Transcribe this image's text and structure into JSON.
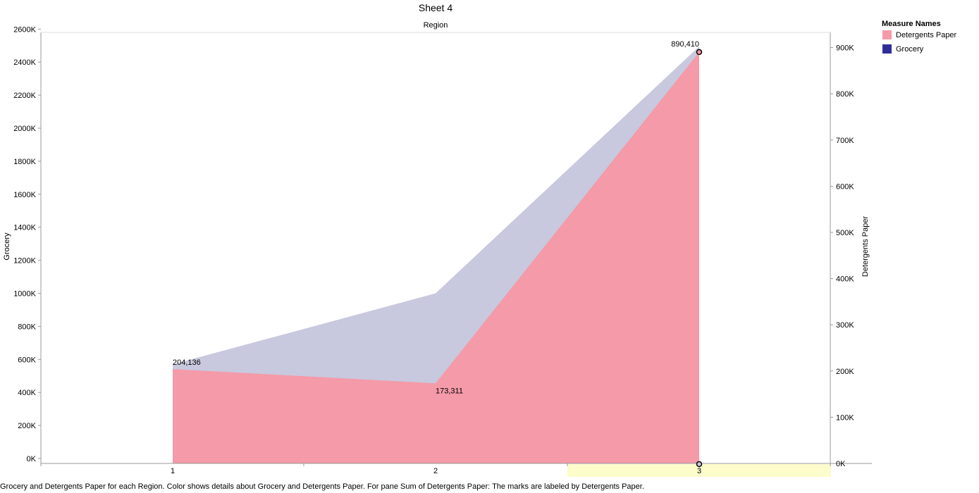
{
  "sheet_title": "Sheet 4",
  "caption": "Grocery and Detergents Paper for each Region.  Color shows details about Grocery and Detergents Paper.  For pane Sum of Detergents Paper:  The marks are labeled by Detergents Paper.",
  "legend": {
    "title": "Measure Names",
    "items": [
      {
        "label": "Detergents Paper",
        "color": "#f49aa8"
      },
      {
        "label": "Grocery",
        "color": "#2e2e9a"
      }
    ]
  },
  "colors": {
    "grocery_area": "#c8c8de",
    "detergents_area": "#f49aa8",
    "highlight": "#fdfccb",
    "axis": "#999999"
  },
  "chart_data": {
    "type": "area",
    "title": "Sheet 4",
    "xlabel": "Region",
    "categories": [
      "1",
      "2",
      "3"
    ],
    "highlighted_category": "3",
    "y_left": {
      "label": "Grocery",
      "ylim": [
        0,
        2600000
      ],
      "ticks": [
        {
          "value": 0,
          "label": "0K"
        },
        {
          "value": 200000,
          "label": "200K"
        },
        {
          "value": 400000,
          "label": "400K"
        },
        {
          "value": 600000,
          "label": "600K"
        },
        {
          "value": 800000,
          "label": "800K"
        },
        {
          "value": 1000000,
          "label": "1000K"
        },
        {
          "value": 1200000,
          "label": "1200K"
        },
        {
          "value": 1400000,
          "label": "1400K"
        },
        {
          "value": 1600000,
          "label": "1600K"
        },
        {
          "value": 1800000,
          "label": "1800K"
        },
        {
          "value": 2000000,
          "label": "2000K"
        },
        {
          "value": 2200000,
          "label": "2200K"
        },
        {
          "value": 2400000,
          "label": "2400K"
        },
        {
          "value": 2600000,
          "label": "2600K"
        }
      ]
    },
    "y_right": {
      "label": "Detergents Paper",
      "ylim": [
        0,
        930000
      ],
      "ticks": [
        {
          "value": 0,
          "label": "0K"
        },
        {
          "value": 100000,
          "label": "100K"
        },
        {
          "value": 200000,
          "label": "200K"
        },
        {
          "value": 300000,
          "label": "300K"
        },
        {
          "value": 400000,
          "label": "400K"
        },
        {
          "value": 500000,
          "label": "500K"
        },
        {
          "value": 600000,
          "label": "600K"
        },
        {
          "value": 700000,
          "label": "700K"
        },
        {
          "value": 800000,
          "label": "800K"
        },
        {
          "value": 900000,
          "label": "900K"
        }
      ]
    },
    "series": [
      {
        "name": "Grocery",
        "axis": "left",
        "values": [
          570037,
          1000000,
          2495251
        ]
      },
      {
        "name": "Detergents Paper",
        "axis": "right",
        "values": [
          204136,
          173311,
          890410
        ],
        "labels": [
          "204,136",
          "173,311",
          "890,410"
        ]
      }
    ]
  }
}
